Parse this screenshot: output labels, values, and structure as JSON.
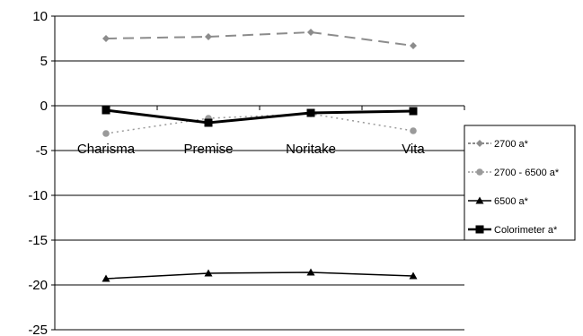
{
  "chart_data": {
    "type": "line",
    "categories": [
      "Charisma",
      "Premise",
      "Noritake",
      "Vita"
    ],
    "ylim": [
      -25,
      10
    ],
    "yticks": [
      10,
      5,
      0,
      -5,
      -10,
      -15,
      -20,
      -25
    ],
    "ytick_labels": [
      "10",
      "5",
      "0",
      "-5",
      "-10",
      "-15",
      "-20",
      "-25"
    ],
    "grid": true,
    "legend_position": "right",
    "series": [
      {
        "name": "2700 a*",
        "values": [
          7.5,
          7.7,
          8.2,
          6.7
        ],
        "color": "#8c8c8c",
        "dash": "12,7",
        "width": 2,
        "marker": "diamond",
        "marker_color": "#8c8c8c"
      },
      {
        "name": "2700 - 6500 a*",
        "values": [
          -3.1,
          -1.4,
          -0.9,
          -2.8
        ],
        "color": "#9a9a9a",
        "dash": "2,4",
        "width": 1.5,
        "marker": "circle",
        "marker_color": "#9a9a9a"
      },
      {
        "name": "6500 a*",
        "values": [
          -19.3,
          -18.7,
          -18.6,
          -19.0
        ],
        "color": "#000000",
        "dash": "",
        "width": 1.5,
        "marker": "triangle",
        "marker_color": "#000000"
      },
      {
        "name": "Colorimeter a*",
        "values": [
          -0.5,
          -1.9,
          -0.8,
          -0.6
        ],
        "color": "#000000",
        "dash": "",
        "width": 3,
        "marker": "square",
        "marker_color": "#000000"
      }
    ]
  }
}
